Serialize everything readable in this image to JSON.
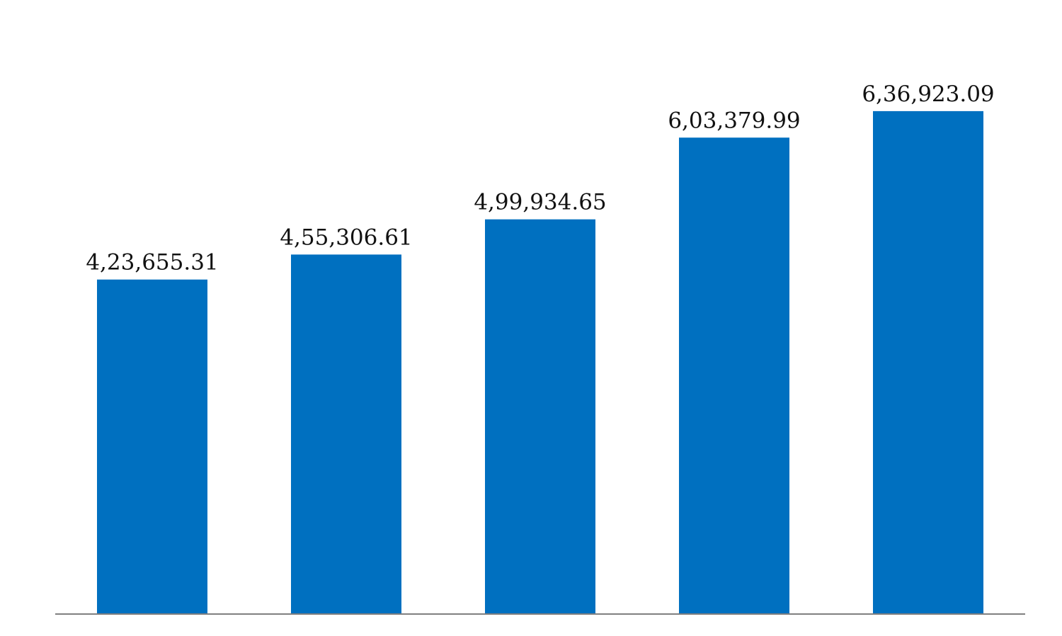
{
  "chart_data": {
    "type": "bar",
    "title": "",
    "xlabel": "",
    "ylabel": "",
    "categories": [
      "",
      "",
      "",
      "",
      ""
    ],
    "values": [
      423655.31,
      455306.61,
      499934.65,
      603379.99,
      636923.09
    ],
    "data_labels": [
      "4,23,655.31",
      "4,55,306.61",
      "4,99,934.65",
      "6,03,379.99",
      "6,36,923.09"
    ],
    "ylim": [
      0,
      688000
    ],
    "grid": false,
    "legend": "none",
    "bar_color": "#0070C0",
    "axis_color": "#808080"
  }
}
